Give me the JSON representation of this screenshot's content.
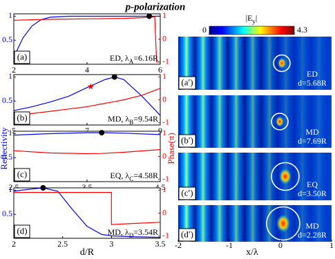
{
  "title": "p-polarization",
  "y_label": "Reflectivity",
  "y2_label": "Phase(π)",
  "x_label": "d/R",
  "chart_data": [
    {
      "type": "line",
      "panel": "(a)",
      "annotation": [
        "ED, λ",
        "A",
        "=6.16R"
      ],
      "x": [
        2,
        2.25,
        2.5,
        2.75,
        3,
        3.5,
        4,
        4.5,
        5,
        5.5,
        5.85,
        5.9,
        6
      ],
      "xlim": [
        2,
        6
      ],
      "xticks": [
        2,
        4,
        6
      ],
      "ylim": [
        0,
        1.05
      ],
      "yticks": [
        0.5,
        1
      ],
      "y2lim": [
        -1.1,
        1.1
      ],
      "y2ticks": [
        -1,
        0,
        1
      ],
      "series": [
        {
          "color": "#0000ff",
          "values": [
            0.15,
            0.55,
            0.8,
            0.93,
            0.98,
            1,
            1,
            1,
            1,
            1,
            1,
            1,
            1
          ]
        },
        {
          "color": "#ff0000",
          "axis": "y2",
          "values": [
            0.82,
            0.83,
            0.84,
            0.85,
            0.86,
            0.87,
            0.88,
            0.89,
            0.9,
            0.93,
            0.97,
            -1,
            -1
          ]
        }
      ],
      "markers": [
        {
          "x": 5.7,
          "y": 1,
          "color": "#000000",
          "shape": "circle"
        }
      ]
    },
    {
      "type": "line",
      "panel": "(b)",
      "annotation": [
        "MD, λ",
        "B",
        "=9.54R"
      ],
      "x": [
        5,
        5.5,
        6,
        6.5,
        7,
        7.5,
        7.75,
        8,
        8.5,
        9
      ],
      "xlim": [
        5,
        9
      ],
      "xticks": [
        5,
        7,
        9
      ],
      "ylim": [
        0,
        1.05
      ],
      "yticks": [
        0.5,
        1
      ],
      "y2lim": [
        -1.1,
        1.1
      ],
      "y2ticks": [
        -1,
        0,
        1
      ],
      "series": [
        {
          "color": "#0000ff",
          "values": [
            0.3,
            0.38,
            0.48,
            0.6,
            0.78,
            0.95,
            1,
            0.95,
            0.6,
            0.2
          ]
        },
        {
          "color": "#ff0000",
          "axis": "y2",
          "values": [
            -0.7,
            -0.6,
            -0.5,
            -0.4,
            -0.3,
            -0.15,
            -0.08,
            0,
            0.2,
            0.5
          ]
        }
      ],
      "markers": [
        {
          "x": 7.75,
          "y": 1,
          "color": "#000000",
          "shape": "circle"
        },
        {
          "x": 7.1,
          "y": 0.8,
          "color": "#ff0000",
          "shape": "star"
        }
      ]
    },
    {
      "type": "line",
      "panel": "(c)",
      "annotation": [
        "EQ, λ",
        "C",
        "=4.58R"
      ],
      "x": [
        2.5,
        3,
        3.5,
        3.7,
        4,
        4.5
      ],
      "xlim": [
        2.5,
        4.5
      ],
      "xticks": [
        2.5,
        3.5,
        4.5
      ],
      "ylim": [
        0,
        1.05
      ],
      "yticks": [
        0.5,
        1
      ],
      "y2lim": [
        -1.1,
        1.1
      ],
      "y2ticks": [
        -1,
        0,
        1
      ],
      "series": [
        {
          "color": "#0000ff",
          "values": [
            0.97,
            1,
            1.02,
            1.02,
            1.01,
            0.98
          ]
        },
        {
          "color": "#ff0000",
          "axis": "y2",
          "values": [
            0.25,
            0.15,
            0.12,
            0.13,
            0.18,
            0.3
          ]
        }
      ],
      "markers": [
        {
          "x": 3.7,
          "y": 1.02,
          "color": "#000000",
          "shape": "circle"
        }
      ]
    },
    {
      "type": "line",
      "panel": "(d)",
      "annotation": [
        "MD, λ",
        "D",
        "=3.54R"
      ],
      "x": [
        2,
        2.15,
        2.3,
        2.45,
        2.6,
        2.75,
        2.9,
        3,
        3,
        3.25,
        3.5
      ],
      "xlim": [
        2,
        3.5
      ],
      "xticks": [
        2,
        2.5,
        3,
        3.5
      ],
      "ylim": [
        0,
        1.05
      ],
      "yticks": [
        0.5,
        1
      ],
      "y2lim": [
        -1.1,
        1.1
      ],
      "y2ticks": [
        -1,
        0,
        1
      ],
      "series": [
        {
          "color": "#0000ff",
          "values": [
            0.98,
            1.02,
            1.05,
            0.98,
            0.6,
            0.25,
            0.08,
            0.05,
            0.05,
            0.03,
            0.02
          ]
        },
        {
          "color": "#ff0000",
          "axis": "y2",
          "values": [
            0.9,
            0.9,
            0.9,
            0.9,
            0.9,
            0.9,
            0.9,
            0.9,
            -0.5,
            -0.45,
            -0.4
          ]
        }
      ],
      "markers": [
        {
          "x": 2.3,
          "y": 1.05,
          "color": "#000000",
          "shape": "circle"
        }
      ]
    }
  ],
  "field_maps": {
    "colorbar": {
      "label": [
        "|E",
        "y",
        "|"
      ],
      "lim": [
        0,
        4.3
      ],
      "ticks": [
        0,
        4.3
      ]
    },
    "xlim": [
      -2,
      1
    ],
    "xticks": [
      -2,
      -1,
      0,
      1
    ],
    "x_label": "x/λ",
    "panels": [
      {
        "label": "(a′)",
        "mode": "ED",
        "d": "d=5.68R"
      },
      {
        "label": "(b′)",
        "mode": "MD",
        "d": "d=7.69R"
      },
      {
        "label": "(c′)",
        "mode": "EQ",
        "d": "d=3.50R"
      },
      {
        "label": "(d′)",
        "mode": "MD",
        "d": "d=2.28R"
      }
    ]
  }
}
